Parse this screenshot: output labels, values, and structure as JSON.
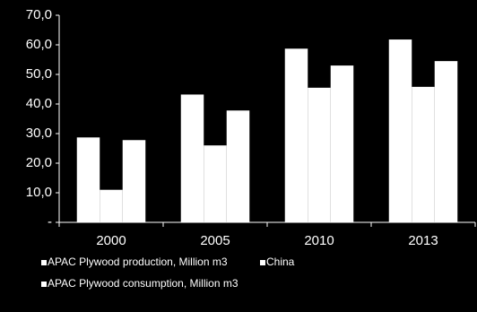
{
  "chart_data": {
    "type": "bar",
    "categories": [
      "2000",
      "2005",
      "2010",
      "2013"
    ],
    "series": [
      {
        "name": "APAC Plywood production, Million m3",
        "color": "#ffffff",
        "values": [
          28.7,
          43.2,
          58.7,
          61.8
        ]
      },
      {
        "name": "China",
        "color": "#ffffff",
        "values": [
          11.0,
          26.0,
          45.5,
          45.8
        ]
      },
      {
        "name": "APAC Plywood consumption, Million m3",
        "color": "#ffffff",
        "values": [
          27.8,
          37.8,
          53.0,
          54.5
        ]
      }
    ],
    "ylim": [
      0,
      70
    ],
    "yticks": [
      {
        "value": 0,
        "label": "-"
      },
      {
        "value": 10,
        "label": "10,0"
      },
      {
        "value": 20,
        "label": "20,0"
      },
      {
        "value": 30,
        "label": "30,0"
      },
      {
        "value": 40,
        "label": "40,0"
      },
      {
        "value": 50,
        "label": "50,0"
      },
      {
        "value": 60,
        "label": "60,0"
      },
      {
        "value": 70,
        "label": "70,0"
      }
    ]
  }
}
